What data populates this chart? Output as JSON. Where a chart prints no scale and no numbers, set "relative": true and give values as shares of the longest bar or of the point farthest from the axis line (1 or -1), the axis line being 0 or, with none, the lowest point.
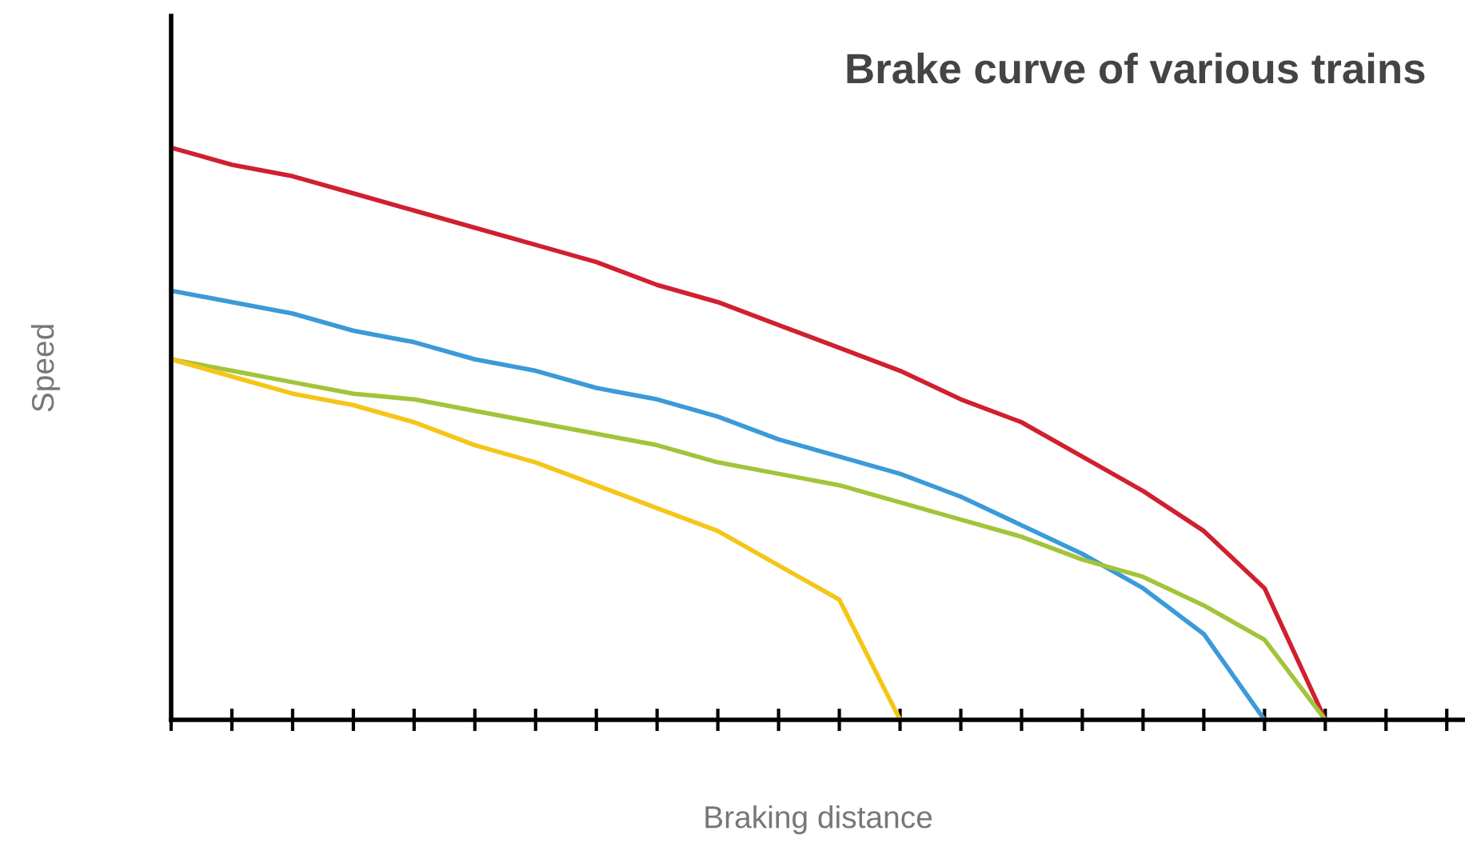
{
  "chart_data": {
    "type": "line",
    "title": "Brake curve of various trains",
    "xlabel": "Braking distance",
    "ylabel": "Speed",
    "relative": true,
    "grid": false,
    "legend": false,
    "categories": [
      null,
      null,
      null,
      null,
      null,
      null,
      null,
      null,
      null,
      null,
      null,
      null,
      null,
      null,
      null,
      null,
      null,
      null,
      null,
      null,
      null,
      null
    ],
    "series": [
      {
        "color": "#d0202f",
        "values": [
          1.0,
          0.97,
          0.95,
          0.92,
          0.89,
          0.86,
          0.83,
          0.8,
          0.76,
          0.73,
          0.69,
          0.65,
          0.61,
          0.56,
          0.52,
          0.46,
          0.4,
          0.33,
          0.23,
          0,
          null,
          null
        ]
      },
      {
        "color": "#3b9ad9",
        "values": [
          0.75,
          0.73,
          0.71,
          0.68,
          0.66,
          0.63,
          0.61,
          0.58,
          0.56,
          0.53,
          0.49,
          0.46,
          0.43,
          0.39,
          0.34,
          0.29,
          0.23,
          0.15,
          0,
          null,
          null,
          null
        ]
      },
      {
        "color": "#a2c43a",
        "values": [
          0.63,
          0.61,
          0.59,
          0.57,
          0.56,
          0.54,
          0.52,
          0.5,
          0.48,
          0.45,
          0.43,
          0.41,
          0.38,
          0.35,
          0.32,
          0.28,
          0.25,
          0.2,
          0.14,
          0,
          null,
          null
        ]
      },
      {
        "color": "#f5c518",
        "values": [
          0.63,
          0.6,
          0.57,
          0.55,
          0.52,
          0.48,
          0.45,
          0.41,
          0.37,
          0.33,
          0.27,
          0.21,
          0,
          null,
          null,
          null,
          null,
          null,
          null,
          null,
          null,
          null
        ]
      }
    ]
  }
}
